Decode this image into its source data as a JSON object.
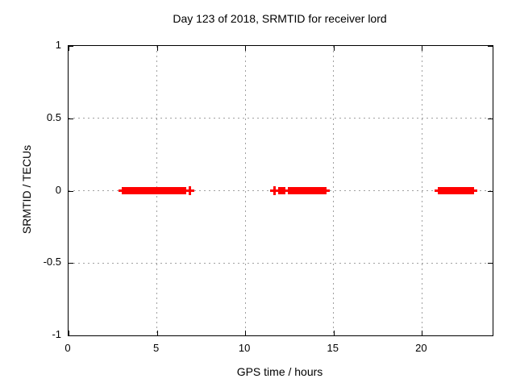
{
  "title": "Day 123 of 2018, SRMTID for receiver lord",
  "axes": {
    "x_label": "GPS time / hours",
    "y_label": "SRMTID / TECUs"
  },
  "colors": {
    "background": "#ffffff",
    "border": "#000000",
    "grid": "#a0a0a0",
    "text": "#000000",
    "series": "#ff0000"
  },
  "chart_data": {
    "type": "scatter",
    "title": "Day 123 of 2018, SRMTID for receiver lord",
    "xlabel": "GPS time / hours",
    "ylabel": "SRMTID / TECUs",
    "xlim": [
      0,
      24
    ],
    "ylim": [
      -1,
      1
    ],
    "grid": true,
    "legend": "none",
    "marker": "plus",
    "x_ticks": [
      0,
      5,
      10,
      15,
      20
    ],
    "x_tick_labels": [
      "0",
      "5",
      "10",
      "15",
      "20"
    ],
    "y_ticks": [
      1,
      0.5,
      0,
      -0.5,
      -1
    ],
    "y_tick_labels": [
      "1",
      "0.5",
      "0",
      "-0.5",
      "-1"
    ],
    "series": [
      {
        "name": "SRMTID",
        "color": "#ff0000",
        "y_value": 0,
        "dense_segments_hours": [
          [
            3.0,
            6.66
          ],
          [
            11.87,
            12.27
          ],
          [
            12.42,
            14.6
          ],
          [
            20.9,
            22.95
          ]
        ],
        "isolated_points_hours": [
          6.85,
          11.68
        ]
      }
    ]
  }
}
